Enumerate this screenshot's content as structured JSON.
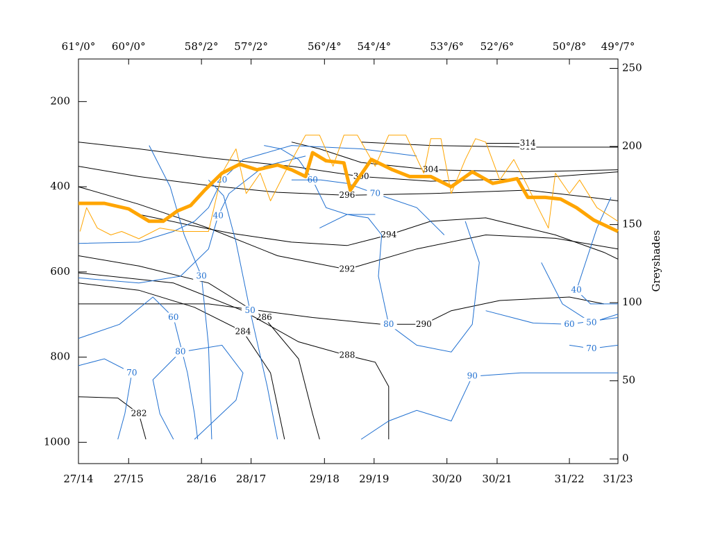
{
  "chart_data": {
    "type": "cross-section",
    "xlim": [
      0,
      100
    ],
    "xticks": [
      {
        "value": 0,
        "label": "27/14"
      },
      {
        "value": 9.3,
        "label": "27/15"
      },
      {
        "value": 22.8,
        "label": "28/16"
      },
      {
        "value": 32.0,
        "label": "28/17"
      },
      {
        "value": 45.6,
        "label": "29/18"
      },
      {
        "value": 54.8,
        "label": "29/19"
      },
      {
        "value": 68.3,
        "label": "30/20"
      },
      {
        "value": 77.6,
        "label": "30/21"
      },
      {
        "value": 91.0,
        "label": "31/22"
      },
      {
        "value": 100,
        "label": "31/23"
      }
    ],
    "x2ticks": [
      {
        "value": 0,
        "label": "61°/0°"
      },
      {
        "value": 9.3,
        "label": "60°/0°"
      },
      {
        "value": 22.8,
        "label": "58°/2°"
      },
      {
        "value": 32.0,
        "label": "57°/2°"
      },
      {
        "value": 45.6,
        "label": "56°/4°"
      },
      {
        "value": 54.8,
        "label": "54°/4°"
      },
      {
        "value": 68.3,
        "label": "53°/6°"
      },
      {
        "value": 77.6,
        "label": "52°/6°"
      },
      {
        "value": 91.0,
        "label": "50°/8°"
      },
      {
        "value": 100,
        "label": "49°/7°"
      }
    ],
    "ylim": [
      1050,
      100
    ],
    "yticks": [
      200,
      400,
      600,
      800,
      1000
    ],
    "y2lim": [
      -3,
      256
    ],
    "y2ticks": [
      0,
      50,
      100,
      150,
      200,
      250
    ],
    "y2label": "Greyshades",
    "series": [
      {
        "color": "#ffa500",
        "width": 1,
        "x": [
          0.3,
          1.5,
          3.5,
          6.0,
          8.0,
          11.2,
          15.1,
          18.9,
          24.1,
          26.6,
          29.2,
          31.1,
          33.7,
          35.6,
          38.2,
          42.1,
          44.7,
          47.2,
          49.2,
          51.7,
          55.0,
          57.5,
          60.7,
          64.0,
          65.3,
          67.2,
          69.1,
          71.7,
          73.6,
          75.5,
          78.1,
          80.7,
          83.3,
          85.2,
          87.1,
          88.4,
          91.0,
          92.9,
          96.1,
          100
        ],
        "values": [
          505,
          449,
          497,
          513,
          505,
          522,
          497,
          505,
          505,
          368,
          311,
          416,
          368,
          433,
          368,
          279,
          279,
          352,
          279,
          279,
          352,
          279,
          279,
          368,
          287,
          287,
          416,
          336,
          287,
          295,
          384,
          336,
          400,
          449,
          497,
          368,
          416,
          384,
          449,
          481
        ]
      },
      {
        "color": "#ffa500",
        "width": 5,
        "x": [
          0,
          4.8,
          9.3,
          13.1,
          15.7,
          18.3,
          20.8,
          23.4,
          26.6,
          29.9,
          33.1,
          36.9,
          39.5,
          42.1,
          43.4,
          45.9,
          49.2,
          50.4,
          54.3,
          58.2,
          61.4,
          65.3,
          69.1,
          73.0,
          76.8,
          81.3,
          83.3,
          86.5,
          89.4,
          92.3,
          95.5,
          100
        ],
        "values": [
          439,
          439,
          452,
          481,
          481,
          457,
          444,
          408,
          368,
          347,
          360,
          349,
          360,
          376,
          320,
          339,
          344,
          408,
          336,
          360,
          376,
          376,
          400,
          365,
          392,
          381,
          425,
          425,
          429,
          449,
          478,
          505
        ]
      }
    ],
    "contour_sets": [
      {
        "color": "#000000",
        "contours": [
          {
            "level": 300,
            "x": [
              0,
              11.2,
              24.1,
              39.5,
              52.4,
              65.3,
              83.3,
              100
            ],
            "y": [
              295,
              311,
              332,
              352,
              376,
              387,
              381,
              365
            ]
          },
          {
            "level": 296,
            "x": [
              0,
              11.2,
              24.1,
              36.9,
              49.8,
              65.3,
              83.3,
              94.9,
              100
            ],
            "y": [
              352,
              376,
              397,
              413,
              420,
              416,
              408,
              425,
              433
            ]
          },
          {
            "level": 292,
            "x": [
              0,
              11.2,
              24.1,
              36.9,
              49.8,
              62.7,
              75.5,
              88.4,
              100
            ],
            "y": [
              400,
              441,
              497,
              562,
              594,
              546,
              513,
              521,
              546
            ]
          },
          {
            "level": 294,
            "x": [
              11.2,
              20.2,
              28.2,
              39.5,
              49.8,
              57.5,
              65.3,
              75.5,
              88.4,
              97.4,
              100
            ],
            "y": [
              465,
              489,
              509,
              530,
              538,
              513,
              481,
              473,
              513,
              554,
              570
            ]
          },
          {
            "level": 286,
            "x": [
              0,
              11.2,
              24.1,
              34.4,
              40.8,
              43.4,
              44.7
            ],
            "y": [
              562,
              586,
              626,
              707,
              804,
              933,
              993
            ]
          },
          {
            "level": 284,
            "x": [
              0,
              11.2,
              21.5,
              30.5,
              35.6,
              38.2
            ],
            "y": [
              626,
              643,
              683,
              740,
              837,
              993
            ]
          },
          {
            "level": 288,
            "x": [
              0,
              17.6,
              30.5,
              40.8,
              49.8,
              55.0,
              57.5,
              57.5
            ],
            "y": [
              602,
              626,
              691,
              764,
              796,
              812,
              869,
              993
            ]
          },
          {
            "level": 290,
            "x": [
              0,
              24.1,
              43.4,
              56.2,
              64.0,
              69.1,
              78.1,
              91.0,
              97.4
            ],
            "y": [
              675,
              675,
              707,
              723,
              723,
              691,
              667,
              659,
              675
            ]
          },
          {
            "level": 282,
            "x": [
              0,
              7.3,
              11.2,
              12.5
            ],
            "y": [
              893,
              896,
              933,
              993
            ]
          },
          {
            "level": 304,
            "x": [
              39.5,
              44.7,
              52.4,
              65.3,
              83.3,
              100
            ],
            "y": [
              295,
              311,
              343,
              360,
              365,
              360
            ]
          },
          {
            "level": 312,
            "x": [
              52.4,
              65.3,
              83.3,
              100
            ],
            "y": [
              295,
              303,
              307,
              307
            ]
          },
          {
            "level": 314,
            "x": [
              75.5,
              83.3
            ],
            "y": [
              298,
              298
            ]
          }
        ]
      },
      {
        "color": "#1f6fd0",
        "contours": [
          {
            "level": 20,
            "x": [
              0,
              11.2,
              17.6,
              21.5,
              24.1,
              26.6,
              30.5,
              39.5,
              52.4,
              62.7
            ],
            "y": [
              533,
              530,
              505,
              481,
              449,
              384,
              336,
              303,
              311,
              328
            ]
          },
          {
            "level": 30,
            "x": [
              13.1,
              17.0,
              19.6,
              22.8,
              24.1,
              24.7
            ],
            "y": [
              303,
              400,
              513,
              610,
              772,
              993
            ]
          },
          {
            "level": 40,
            "x": [
              0,
              11.2,
              18.9,
              24.1,
              25.9,
              27.9,
              34.4,
              42.1
            ],
            "y": [
              614,
              626,
              610,
              546,
              468,
              416,
              352,
              328
            ]
          },
          {
            "level": 50,
            "x": [
              24.1,
              26.9,
              29.2,
              31.8,
              35.0,
              36.9
            ],
            "y": [
              384,
              421,
              530,
              691,
              869,
              993
            ]
          },
          {
            "level": 60,
            "x": [
              34.4,
              37.5,
              40.8,
              43.4,
              45.9,
              49.8,
              55.0
            ],
            "y": [
              303,
              311,
              336,
              384,
              449,
              465,
              465
            ]
          },
          {
            "level": 70,
            "x": [
              39.5,
              44.9,
              49.8,
              55.0,
              62.7,
              67.8
            ],
            "y": [
              384,
              384,
              392,
              416,
              449,
              513
            ]
          },
          {
            "level": 80,
            "x": [
              44.7,
              49.8,
              53.7,
              56.2,
              55.6,
              57.5,
              62.7,
              69.1,
              73.0,
              74.3,
              71.7
            ],
            "y": [
              497,
              465,
              473,
              513,
              610,
              723,
              772,
              788,
              723,
              578,
              481
            ]
          },
          {
            "level": 60,
            "x": [
              0,
              7.6,
              13.8,
              17.6,
              20.2,
              21.5,
              22.1
            ],
            "y": [
              756,
              723,
              659,
              707,
              837,
              933,
              993
            ]
          },
          {
            "level": 70,
            "x": [
              0,
              4.8,
              9.9,
              8.6,
              7.3
            ],
            "y": [
              820,
              804,
              837,
              933,
              993
            ]
          },
          {
            "level": 80,
            "x": [
              21.5,
              29.2,
              30.5,
              26.6,
              18.9,
              13.8,
              15.1,
              17.6
            ],
            "y": [
              993,
              901,
              837,
              772,
              788,
              853,
              933,
              993
            ]
          },
          {
            "level": 90,
            "x": [
              52.4,
              57.5,
              62.7,
              69.1,
              73.0,
              82.0,
              91.0,
              100
            ],
            "y": [
              993,
              950,
              925,
              950,
              845,
              837,
              837,
              837
            ]
          },
          {
            "level": 60,
            "x": [
              75.5,
              84.3,
              91.0,
              100
            ],
            "y": [
              691,
              720,
              723,
              707
            ]
          },
          {
            "level": 50,
            "x": [
              85.8,
              89.7,
              95.1,
              100
            ],
            "y": [
              578,
              675,
              719,
              699
            ]
          },
          {
            "level": 70,
            "x": [
              91.0,
              95.1,
              100
            ],
            "y": [
              772,
              780,
              772
            ]
          },
          {
            "level": 40,
            "x": [
              98.7,
              96.1,
              92.3,
              94.9,
              100
            ],
            "y": [
              425,
              497,
              643,
              675,
              675
            ]
          }
        ]
      }
    ]
  }
}
